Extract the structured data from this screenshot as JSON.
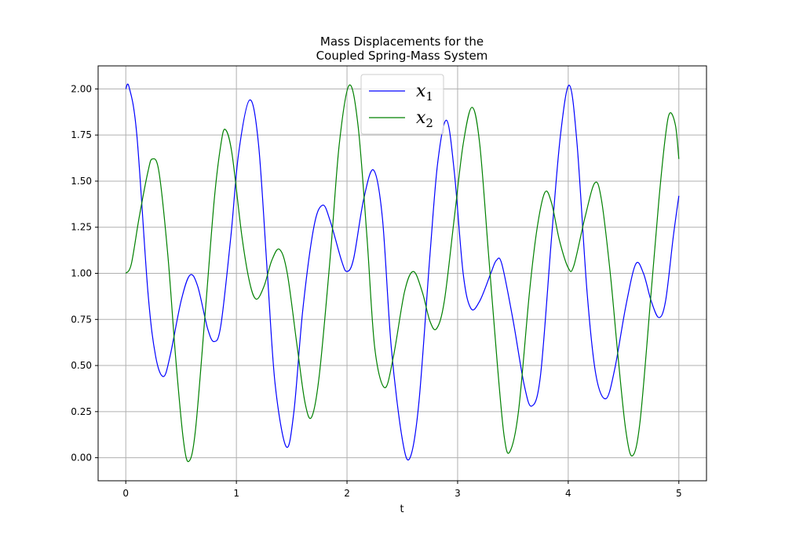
{
  "chart_data": {
    "type": "line",
    "title": [
      "Mass Displacements for the",
      "Coupled Spring-Mass System"
    ],
    "xlabel": "t",
    "ylabel": "",
    "xlim": [
      -0.25,
      5.25
    ],
    "ylim": [
      -0.125,
      2.125
    ],
    "xticks": [
      0,
      1,
      2,
      3,
      4,
      5
    ],
    "xtick_labels": [
      "0",
      "1",
      "2",
      "3",
      "4",
      "5"
    ],
    "yticks": [
      0,
      0.25,
      0.5,
      0.75,
      1.0,
      1.25,
      1.5,
      1.75,
      2.0
    ],
    "ytick_labels": [
      "0.00",
      "0.25",
      "0.50",
      "0.75",
      "1.00",
      "1.25",
      "1.50",
      "1.75",
      "2.00"
    ],
    "grid": true,
    "legend_position": "upper-center",
    "series": [
      {
        "name": "x",
        "subscript": "1",
        "color": "#0000ff",
        "points": [
          [
            0,
            2.0
          ],
          [
            0.03,
            2.01
          ],
          [
            0.1,
            1.75
          ],
          [
            0.2,
            0.9
          ],
          [
            0.27,
            0.55
          ],
          [
            0.34,
            0.44
          ],
          [
            0.4,
            0.55
          ],
          [
            0.5,
            0.85
          ],
          [
            0.58,
            0.99
          ],
          [
            0.65,
            0.93
          ],
          [
            0.74,
            0.7
          ],
          [
            0.8,
            0.63
          ],
          [
            0.86,
            0.72
          ],
          [
            0.95,
            1.2
          ],
          [
            1.02,
            1.65
          ],
          [
            1.12,
            1.94
          ],
          [
            1.2,
            1.7
          ],
          [
            1.28,
            1.0
          ],
          [
            1.35,
            0.4
          ],
          [
            1.45,
            0.06
          ],
          [
            1.52,
            0.25
          ],
          [
            1.6,
            0.8
          ],
          [
            1.7,
            1.25
          ],
          [
            1.78,
            1.37
          ],
          [
            1.85,
            1.28
          ],
          [
            1.95,
            1.07
          ],
          [
            2.0,
            1.01
          ],
          [
            2.06,
            1.08
          ],
          [
            2.15,
            1.4
          ],
          [
            2.24,
            1.56
          ],
          [
            2.32,
            1.3
          ],
          [
            2.4,
            0.6
          ],
          [
            2.5,
            0.1
          ],
          [
            2.57,
            0.0
          ],
          [
            2.65,
            0.3
          ],
          [
            2.75,
            1.1
          ],
          [
            2.82,
            1.6
          ],
          [
            2.9,
            1.83
          ],
          [
            2.97,
            1.55
          ],
          [
            3.05,
            1.0
          ],
          [
            3.12,
            0.81
          ],
          [
            3.2,
            0.85
          ],
          [
            3.3,
            1.0
          ],
          [
            3.35,
            1.07
          ],
          [
            3.4,
            1.05
          ],
          [
            3.5,
            0.75
          ],
          [
            3.6,
            0.4
          ],
          [
            3.67,
            0.28
          ],
          [
            3.75,
            0.45
          ],
          [
            3.85,
            1.2
          ],
          [
            3.93,
            1.75
          ],
          [
            4.01,
            2.02
          ],
          [
            4.08,
            1.7
          ],
          [
            4.17,
            0.9
          ],
          [
            4.25,
            0.45
          ],
          [
            4.34,
            0.32
          ],
          [
            4.42,
            0.48
          ],
          [
            4.52,
            0.82
          ],
          [
            4.61,
            1.05
          ],
          [
            4.68,
            1.0
          ],
          [
            4.75,
            0.85
          ],
          [
            4.82,
            0.76
          ],
          [
            4.88,
            0.85
          ],
          [
            4.95,
            1.2
          ],
          [
            5.0,
            1.42
          ]
        ]
      },
      {
        "name": "x",
        "subscript": "2",
        "color": "#008000",
        "points": [
          [
            0,
            1.0
          ],
          [
            0.05,
            1.05
          ],
          [
            0.12,
            1.3
          ],
          [
            0.2,
            1.55
          ],
          [
            0.24,
            1.62
          ],
          [
            0.3,
            1.55
          ],
          [
            0.38,
            1.1
          ],
          [
            0.45,
            0.55
          ],
          [
            0.52,
            0.1
          ],
          [
            0.57,
            -0.02
          ],
          [
            0.63,
            0.15
          ],
          [
            0.72,
            0.8
          ],
          [
            0.8,
            1.4
          ],
          [
            0.86,
            1.7
          ],
          [
            0.9,
            1.78
          ],
          [
            0.96,
            1.65
          ],
          [
            1.05,
            1.2
          ],
          [
            1.12,
            0.95
          ],
          [
            1.18,
            0.86
          ],
          [
            1.25,
            0.93
          ],
          [
            1.32,
            1.07
          ],
          [
            1.39,
            1.13
          ],
          [
            1.46,
            1.0
          ],
          [
            1.55,
            0.6
          ],
          [
            1.62,
            0.3
          ],
          [
            1.68,
            0.22
          ],
          [
            1.75,
            0.45
          ],
          [
            1.85,
            1.1
          ],
          [
            1.93,
            1.7
          ],
          [
            2.02,
            2.02
          ],
          [
            2.1,
            1.8
          ],
          [
            2.18,
            1.2
          ],
          [
            2.25,
            0.6
          ],
          [
            2.34,
            0.38
          ],
          [
            2.42,
            0.55
          ],
          [
            2.52,
            0.9
          ],
          [
            2.6,
            1.01
          ],
          [
            2.68,
            0.9
          ],
          [
            2.75,
            0.74
          ],
          [
            2.81,
            0.7
          ],
          [
            2.88,
            0.85
          ],
          [
            2.97,
            1.3
          ],
          [
            3.05,
            1.7
          ],
          [
            3.13,
            1.9
          ],
          [
            3.2,
            1.7
          ],
          [
            3.28,
            1.1
          ],
          [
            3.36,
            0.5
          ],
          [
            3.42,
            0.12
          ],
          [
            3.47,
            0.03
          ],
          [
            3.55,
            0.25
          ],
          [
            3.65,
            0.9
          ],
          [
            3.72,
            1.25
          ],
          [
            3.79,
            1.44
          ],
          [
            3.85,
            1.38
          ],
          [
            3.92,
            1.18
          ],
          [
            4.0,
            1.03
          ],
          [
            4.05,
            1.04
          ],
          [
            4.15,
            1.3
          ],
          [
            4.24,
            1.49
          ],
          [
            4.3,
            1.4
          ],
          [
            4.38,
            1.0
          ],
          [
            4.45,
            0.55
          ],
          [
            4.52,
            0.15
          ],
          [
            4.58,
            0.01
          ],
          [
            4.65,
            0.2
          ],
          [
            4.75,
            0.9
          ],
          [
            4.82,
            1.4
          ],
          [
            4.88,
            1.75
          ],
          [
            4.92,
            1.87
          ],
          [
            4.97,
            1.8
          ],
          [
            5.0,
            1.62
          ]
        ]
      }
    ]
  }
}
